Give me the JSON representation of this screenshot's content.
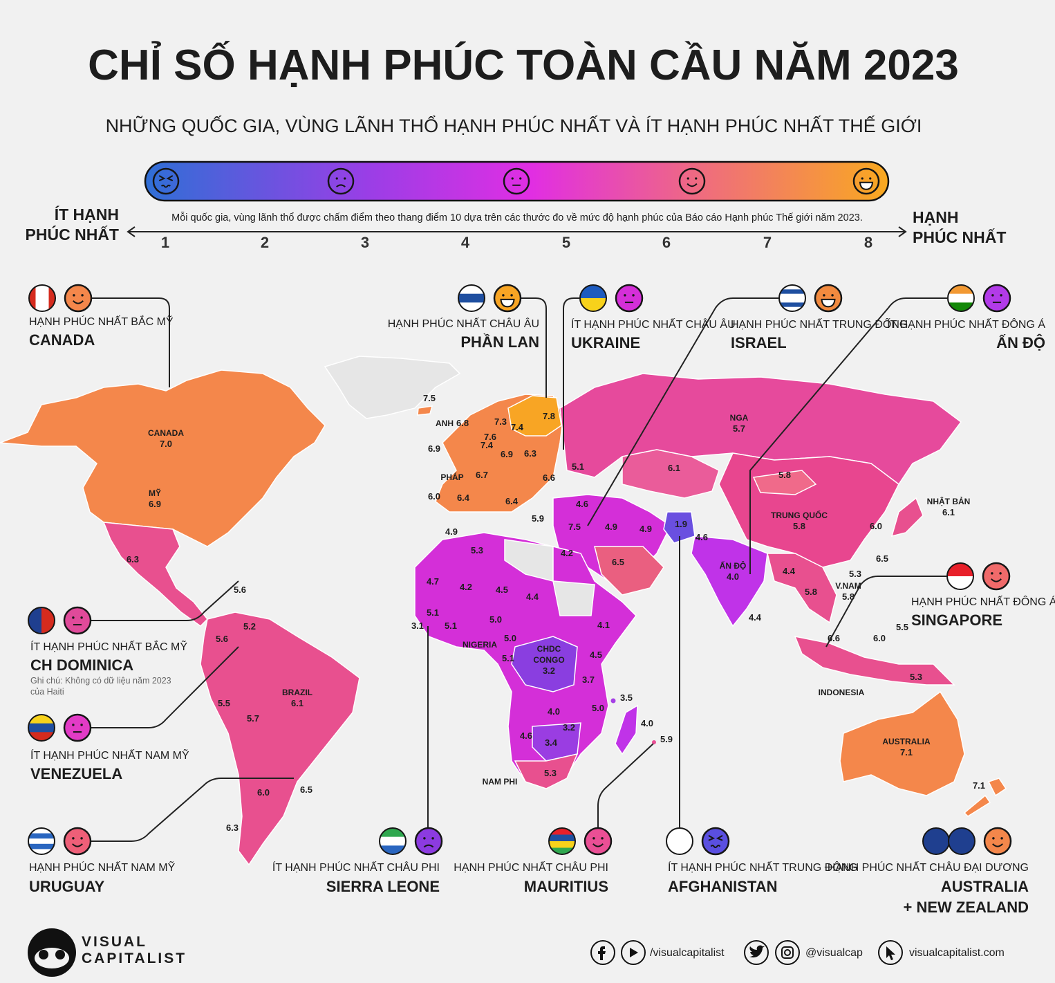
{
  "header": {
    "title": "CHỈ SỐ HẠNH PHÚC TOÀN CẦU NĂM 2023",
    "subtitle": "NHỮNG QUỐC GIA, VÙNG LÃNH THỔ HẠNH PHÚC NHẤT VÀ ÍT HẠNH PHÚC NHẤT THẾ GIỚI"
  },
  "scale": {
    "left_label": [
      "ÍT HẠNH",
      "PHÚC NHẤT"
    ],
    "right_label": [
      "HẠNH",
      "PHÚC NHẤT"
    ],
    "note": "Mỗi quốc gia, vùng lãnh thổ được chấm điểm theo thang điểm 10 dựa trên các thước đo về mức độ hạnh phúc của Báo cáo Hạnh phúc Thế giới năm 2023.",
    "ticks": [
      "1",
      "2",
      "3",
      "4",
      "5",
      "6",
      "7",
      "8"
    ]
  },
  "callouts": [
    {
      "caption": "HẠNH PHÚC NHẤT BẮC MỸ",
      "country": [
        "CANADA"
      ]
    },
    {
      "caption": "HẠNH PHÚC NHẤT CHÂU ÂU",
      "country": [
        "PHẦN LAN"
      ]
    },
    {
      "caption": "ÍT HẠNH PHÚC NHẤT CHÂU ÂU",
      "country": [
        "UKRAINE"
      ]
    },
    {
      "caption": "HẠNH PHÚC NHẤT TRUNG ĐÔNG",
      "country": [
        "ISRAEL"
      ]
    },
    {
      "caption": "ÍT HẠNH PHÚC NHẤT ĐÔNG Á",
      "country": [
        "ẤN ĐỘ"
      ]
    },
    {
      "caption": "HẠNH PHÚC NHẤT ĐÔNG Á",
      "country": [
        "SINGAPORE"
      ]
    },
    {
      "caption": "ÍT HẠNH PHÚC NHẤT BẮC MỸ",
      "country": [
        "CH DOMINICA"
      ],
      "note": [
        "Ghi chú: Không có dữ liệu năm 2023",
        "của Haiti"
      ]
    },
    {
      "caption": "ÍT HẠNH PHÚC NHẤT NAM MỸ",
      "country": [
        "VENEZUELA"
      ]
    },
    {
      "caption": "HẠNH PHÚC NHẤT NAM MỸ",
      "country": [
        "URUGUAY"
      ]
    },
    {
      "caption": "ÍT HẠNH PHÚC NHẤT CHÂU PHI",
      "country": [
        "SIERRA LEONE"
      ]
    },
    {
      "caption": "HẠNH PHÚC NHẤT CHÂU PHI",
      "country": [
        "MAURITIUS"
      ]
    },
    {
      "caption": "ÍT HẠNH PHÚC NHẤT TRUNG ĐÔNG",
      "country": [
        "AFGHANISTAN"
      ]
    },
    {
      "caption": "HẠNH PHÚC NHẤT CHÂU ĐẠI DƯƠNG",
      "country": [
        "AUSTRALIA",
        "+ NEW ZEALAND"
      ]
    }
  ],
  "map_labels": [
    {
      "name": [
        "CANADA"
      ],
      "value": "7.0"
    },
    {
      "name": [
        "MỸ"
      ],
      "value": "6.9"
    },
    {
      "value": "6.3"
    },
    {
      "value": "5.6"
    },
    {
      "value": "5.2"
    },
    {
      "value": "5.6"
    },
    {
      "name": [
        "BRAZIL"
      ],
      "value": "6.1"
    },
    {
      "value": "5.5"
    },
    {
      "value": "5.7"
    },
    {
      "value": "6.5"
    },
    {
      "value": "6.0"
    },
    {
      "value": "6.3"
    },
    {
      "value": "7.5"
    },
    {
      "name": [
        "ANH"
      ],
      "value": "6.8"
    },
    {
      "value": "7.3"
    },
    {
      "value": "7.4"
    },
    {
      "value": "7.8"
    },
    {
      "value": "7.6"
    },
    {
      "value": "7.4"
    },
    {
      "value": "6.9"
    },
    {
      "value": "6.9"
    },
    {
      "value": "6.3"
    },
    {
      "name": [
        "PHÁP"
      ]
    },
    {
      "value": "6.7"
    },
    {
      "value": "6.6"
    },
    {
      "value": "5.1"
    },
    {
      "value": "6.0"
    },
    {
      "value": "6.4"
    },
    {
      "value": "6.4"
    },
    {
      "value": "4.6"
    },
    {
      "value": "5.9"
    },
    {
      "value": "7.5"
    },
    {
      "value": "4.9"
    },
    {
      "value": "4.9"
    },
    {
      "name": [
        "NGA"
      ],
      "value": "5.7"
    },
    {
      "value": "6.1"
    },
    {
      "value": "5.8"
    },
    {
      "value": "1.9"
    },
    {
      "value": "4.6"
    },
    {
      "name": [
        "TRUNG QUỐC"
      ],
      "value": "5.8"
    },
    {
      "name": [
        "NHẬT BẢN"
      ],
      "value": "6.1"
    },
    {
      "value": "6.0"
    },
    {
      "value": "6.5"
    },
    {
      "value": "4.9"
    },
    {
      "value": "5.3"
    },
    {
      "value": "4.2"
    },
    {
      "value": "6.5"
    },
    {
      "name": [
        "ẤN ĐỘ"
      ],
      "value": "4.0"
    },
    {
      "value": "4.4"
    },
    {
      "value": "5.3"
    },
    {
      "name": [
        "V.NAM"
      ],
      "value": "5.8"
    },
    {
      "value": "5.8"
    },
    {
      "value": "4.7"
    },
    {
      "value": "4.2"
    },
    {
      "value": "4.5"
    },
    {
      "value": "4.4"
    },
    {
      "value": "5.1"
    },
    {
      "value": "5.0"
    },
    {
      "value": "4.1"
    },
    {
      "value": "5.1"
    },
    {
      "value": "3.1"
    },
    {
      "value": "4.4"
    },
    {
      "value": "5.5"
    },
    {
      "value": "6.6"
    },
    {
      "value": "6.0"
    },
    {
      "name": [
        "NIGERIA"
      ]
    },
    {
      "value": "5.0"
    },
    {
      "name": [
        "CHDC",
        "CONGO"
      ],
      "value": "3.2"
    },
    {
      "value": "4.5"
    },
    {
      "value": "5.1"
    },
    {
      "value": "3.7"
    },
    {
      "value": "3.5"
    },
    {
      "value": "4.0"
    },
    {
      "value": "5.0"
    },
    {
      "value": "4.0"
    },
    {
      "value": "3.2"
    },
    {
      "value": "4.6"
    },
    {
      "value": "3.4"
    },
    {
      "value": "5.9"
    },
    {
      "name": [
        "NAM PHI"
      ]
    },
    {
      "value": "5.3"
    },
    {
      "name": [
        "INDONESIA"
      ]
    },
    {
      "value": "5.3"
    },
    {
      "name": [
        "AUSTRALIA"
      ],
      "value": "7.1"
    },
    {
      "value": "7.1"
    }
  ],
  "footer": {
    "brand": [
      "VISUAL",
      "CAPITALIST"
    ],
    "facebook": "/visualcapitalist",
    "twitter": "@visualcap",
    "website": "visualcapitalist.com"
  }
}
